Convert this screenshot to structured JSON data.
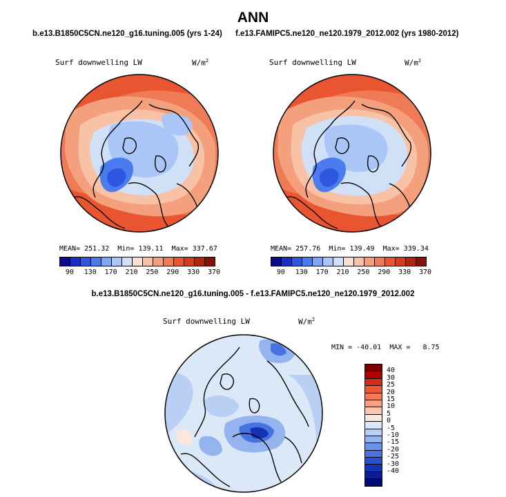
{
  "figure": {
    "title": "ANN"
  },
  "panels": [
    {
      "id": "test",
      "case_title": "b.e13.B1850C5CN.ne120_g16.tuning.005 (yrs 1-24)",
      "variable": "Surf downwelling LW",
      "units": "W/m",
      "units_exp": "2",
      "stats": {
        "mean_label": "MEAN=",
        "mean": "251.32",
        "min_label": "Min=",
        "min": "139.11",
        "max_label": "Max=",
        "max": "337.67"
      }
    },
    {
      "id": "obs",
      "case_title": "f.e13.FAMIPC5.ne120_ne120.1979_2012.002 (yrs 1980-2012)",
      "variable": "Surf downwelling LW",
      "units": "W/m",
      "units_exp": "2",
      "stats": {
        "mean_label": "MEAN=",
        "mean": "257.76",
        "min_label": "Min=",
        "min": "139.49",
        "max_label": "Max=",
        "max": "339.34"
      }
    },
    {
      "id": "diff",
      "case_title": "b.e13.B1850C5CN.ne120_g16.tuning.005 - f.e13.FAMIPC5.ne120_ne120.1979_2012.002",
      "variable": "Surf downwelling LW",
      "units": "W/m",
      "units_exp": "2",
      "stats": {
        "min_label": "MIN =",
        "min": "-40.01",
        "max_label": "MAX =",
        "max": "8.75"
      }
    }
  ],
  "colorbar_abs": {
    "colors": [
      "#0a0a8f",
      "#1a2fc4",
      "#2f56e0",
      "#4a7cf0",
      "#7ea6f6",
      "#a9c6f7",
      "#cfe0f7",
      "#f6e0d2",
      "#f8c2a6",
      "#f4a07c",
      "#ee7b55",
      "#e95530",
      "#d63b1d",
      "#b2260f",
      "#871008"
    ],
    "ticks": [
      "90",
      "130",
      "170",
      "210",
      "250",
      "290",
      "330",
      "370"
    ]
  },
  "colorbar_diff": {
    "colors": [
      "#7c0000",
      "#b00000",
      "#d62a1a",
      "#ec5a35",
      "#f37a55",
      "#f6a080",
      "#f8c6ae",
      "#fbe7dc",
      "#dbe8f8",
      "#b9d0f4",
      "#94b3ef",
      "#6b93e9",
      "#4573e0",
      "#2452d2",
      "#1534b5",
      "#0a1d93",
      "#000c73"
    ],
    "ticks": [
      "40",
      "30",
      "25",
      "20",
      "15",
      "10",
      "5",
      "0",
      "-5",
      "-10",
      "-15",
      "-20",
      "-25",
      "-30",
      "-40"
    ]
  }
}
